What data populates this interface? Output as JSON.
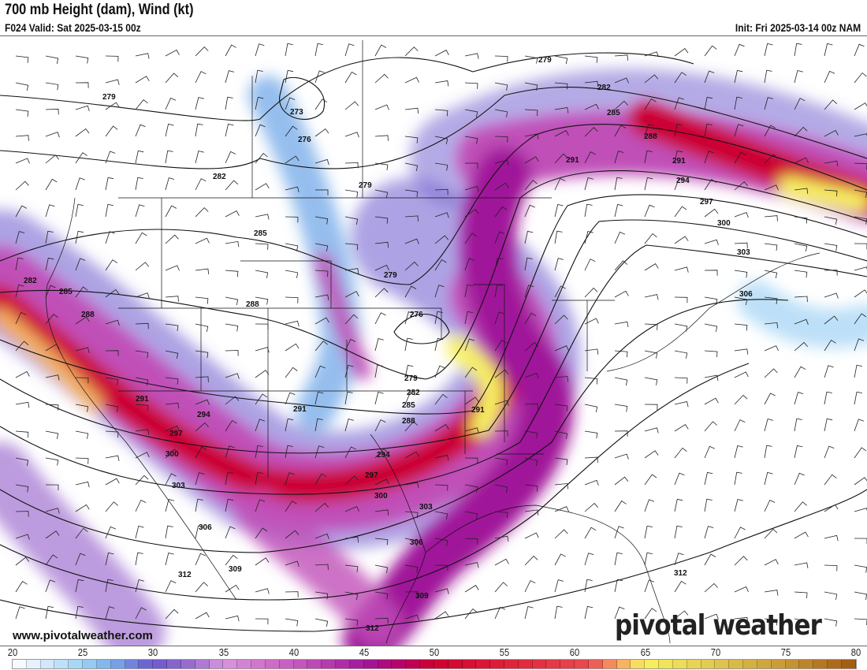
{
  "header": {
    "title": "700 mb Height (dam), Wind (kt)",
    "valid": "F024 Valid: Sat 2025-03-15 00z",
    "init": "Init: Fri 2025-03-14 00z NAM"
  },
  "contours": {
    "labels": [
      "279",
      "282",
      "285",
      "288",
      "291",
      "294",
      "297",
      "300",
      "303",
      "306",
      "309",
      "312",
      "273",
      "276",
      "279",
      "282",
      "285",
      "288",
      "279",
      "276",
      "279",
      "282",
      "285",
      "288",
      "291",
      "294",
      "297",
      "300",
      "303",
      "306",
      "309",
      "312",
      "291",
      "291",
      "279",
      "282",
      "285",
      "288",
      "291",
      "294",
      "297",
      "300",
      "303",
      "306",
      "312"
    ]
  },
  "footer": {
    "url": "www.pivotalweather.com",
    "logo": "pivotal weather"
  },
  "colorbar": {
    "ticks": [
      "20",
      "25",
      "30",
      "35",
      "40",
      "45",
      "50",
      "55",
      "60",
      "65",
      "70",
      "75",
      "80"
    ],
    "unit": "kt",
    "stops": [
      [
        20,
        "#ffffff"
      ],
      [
        22,
        "#dcecfb"
      ],
      [
        25,
        "#9fd3f5"
      ],
      [
        27,
        "#7aaeea"
      ],
      [
        30,
        "#6a58cc"
      ],
      [
        33,
        "#a070d0"
      ],
      [
        35,
        "#d896dc"
      ],
      [
        38,
        "#d070c8"
      ],
      [
        41,
        "#c050b8"
      ],
      [
        45,
        "#a0189a"
      ],
      [
        48,
        "#b80060"
      ],
      [
        50,
        "#cc0030"
      ],
      [
        55,
        "#de2038"
      ],
      [
        61,
        "#e84a50"
      ],
      [
        63,
        "#f5a060"
      ],
      [
        65,
        "#f8f060"
      ],
      [
        70,
        "#e0c850"
      ],
      [
        75,
        "#c89838"
      ],
      [
        80,
        "#a05810"
      ]
    ]
  }
}
